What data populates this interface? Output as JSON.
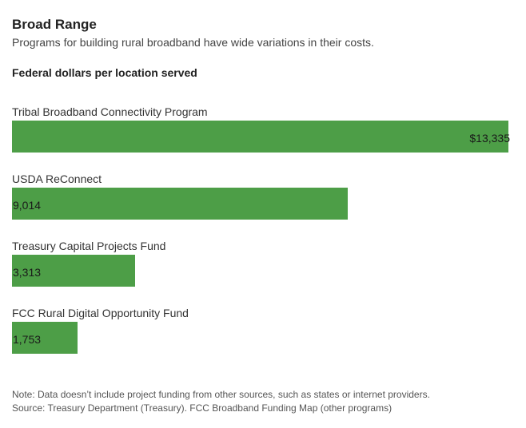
{
  "chart_data": {
    "type": "bar",
    "orientation": "horizontal",
    "title": "Broad Range",
    "subtitle": "Programs for building rural broadband have wide variations in their costs.",
    "unit_label": "Federal dollars per location served",
    "categories": [
      "Tribal Broadband Connectivity Program",
      "USDA ReConnect",
      "Treasury Capital Projects Fund",
      "FCC Rural Digital Opportunity Fund"
    ],
    "values": [
      13335,
      9014,
      3313,
      1753
    ],
    "value_labels": [
      "$13,335",
      "9,014",
      "3,313",
      "1,753"
    ],
    "xlim": [
      0,
      13335
    ],
    "bar_color": "#4d9e47",
    "grid": false,
    "legend": "none"
  },
  "notes": {
    "note": "Note: Data doesn’t include project funding from other sources, such as states or internet providers.",
    "source": "Source: Treasury Department (Treasury). FCC Broadband Funding Map (other programs)"
  }
}
